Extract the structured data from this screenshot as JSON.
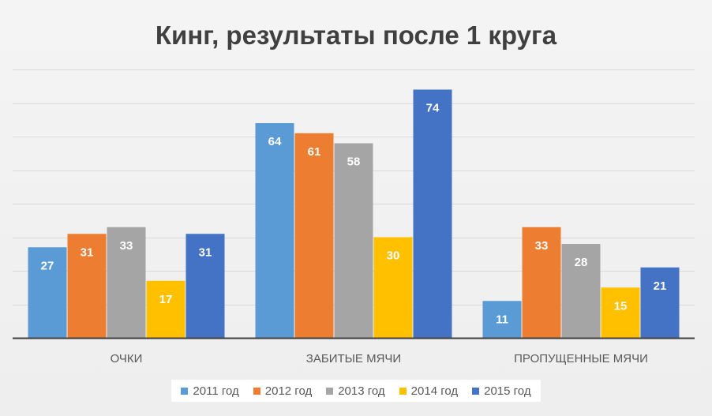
{
  "chart_data": {
    "type": "bar",
    "title": "Кинг, результаты после 1 круга",
    "categories": [
      "ОЧКИ",
      "ЗАБИТЫЕ МЯЧИ",
      "ПРОПУЩЕННЫЕ МЯЧИ"
    ],
    "series": [
      {
        "name": "2011 год",
        "color": "#5B9BD5",
        "values": [
          27,
          64,
          11
        ]
      },
      {
        "name": "2012 год",
        "color": "#ED7D31",
        "values": [
          31,
          61,
          33
        ]
      },
      {
        "name": "2013 год",
        "color": "#A5A5A5",
        "values": [
          33,
          58,
          28
        ]
      },
      {
        "name": "2014 год",
        "color": "#FFC000",
        "values": [
          17,
          30,
          15
        ]
      },
      {
        "name": "2015 год",
        "color": "#4472C4",
        "values": [
          31,
          74,
          21
        ]
      }
    ],
    "ylim": [
      0,
      80
    ],
    "y_gridline_step": 10,
    "y_tick_labels_shown": false,
    "grid": true,
    "data_labels": true,
    "legend_position": "bottom"
  }
}
